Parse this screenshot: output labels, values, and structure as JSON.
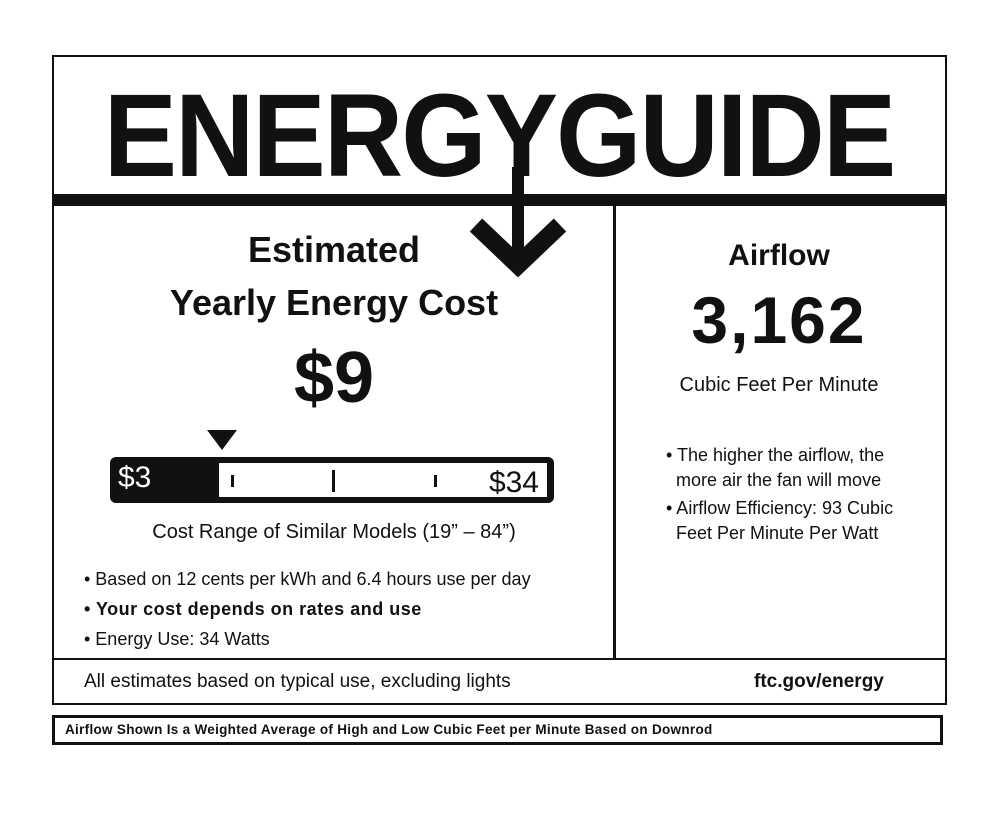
{
  "header": {
    "title": "ENERGYGUIDE"
  },
  "cost": {
    "heading_line1": "Estimated",
    "heading_line2": "Yearly Energy Cost",
    "value": "$9",
    "range_low": "$3",
    "range_high": "$34",
    "range_caption": "Cost Range of Similar Models (19” – 84”)",
    "bullets": [
      "• Based on 12 cents per kWh and 6.4 hours use per day",
      "• Your cost depends on rates and use",
      "• Energy Use: 34 Watts"
    ]
  },
  "airflow": {
    "heading": "Airflow",
    "value": "3,162",
    "unit": "Cubic Feet Per Minute",
    "bullets": [
      "• The higher the airflow, the\n  more air the fan will move",
      "• Airflow Efficiency: 93 Cubic\n  Feet Per Minute Per Watt"
    ]
  },
  "footer": {
    "note": "All estimates based on typical use, excluding lights",
    "link": "ftc.gov/energy"
  },
  "disclaimer": "Airflow Shown Is a Weighted Average of High and Low Cubic Feet per Minute Based on Downrod"
}
